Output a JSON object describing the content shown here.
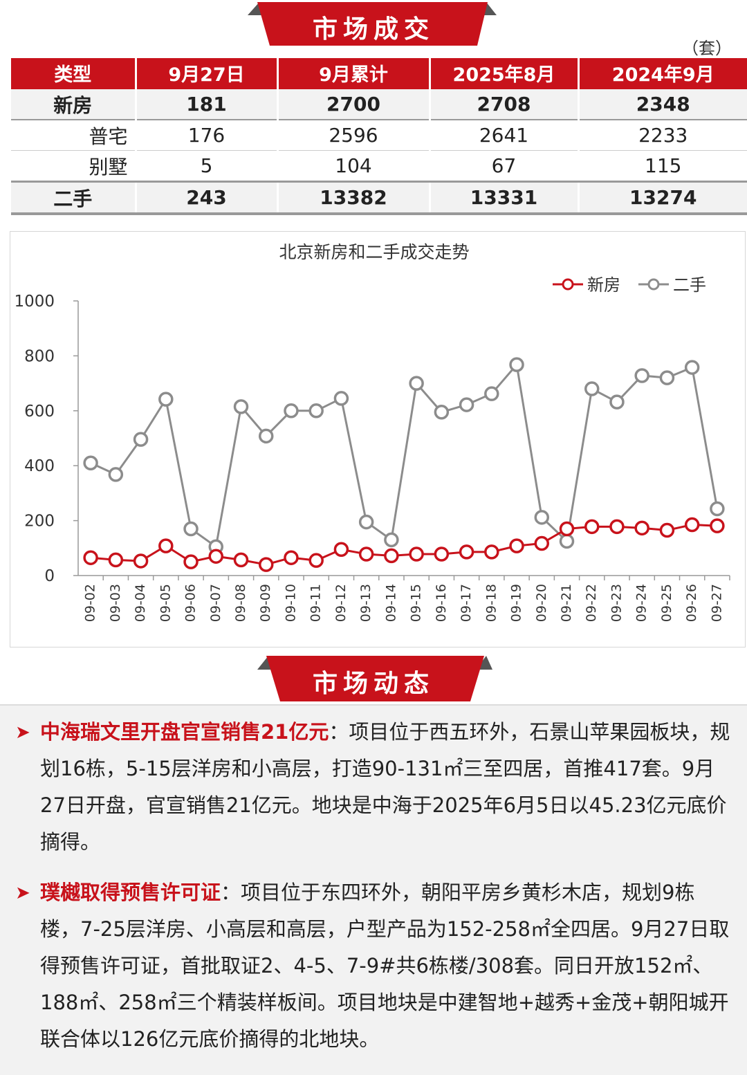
{
  "section1": {
    "title": "市场成交"
  },
  "unit": "（套）",
  "table": {
    "headers": [
      "类型",
      "9月27日",
      "9月累计",
      "2025年8月",
      "2024年9月"
    ],
    "rows": [
      {
        "label": "新房",
        "values": [
          "181",
          "2700",
          "2708",
          "2348"
        ]
      },
      {
        "label": "普宅",
        "values": [
          "176",
          "2596",
          "2641",
          "2233"
        ]
      },
      {
        "label": "别墅",
        "values": [
          "5",
          "104",
          "67",
          "115"
        ]
      },
      {
        "label": "二手",
        "values": [
          "243",
          "13382",
          "13331",
          "13274"
        ]
      }
    ]
  },
  "chart_data": {
    "type": "line",
    "title": "北京新房和二手成交走势",
    "ylim": [
      0,
      1000
    ],
    "yticks": [
      "0",
      "200",
      "400",
      "600",
      "800",
      "1000"
    ],
    "grid": false,
    "legend_position": "top-right",
    "x": [
      "09-02",
      "09-03",
      "09-04",
      "09-05",
      "09-06",
      "09-07",
      "09-08",
      "09-09",
      "09-10",
      "09-11",
      "09-12",
      "09-13",
      "09-14",
      "09-15",
      "09-16",
      "09-17",
      "09-18",
      "09-19",
      "09-20",
      "09-21",
      "09-22",
      "09-23",
      "09-24",
      "09-25",
      "09-26",
      "09-27"
    ],
    "series": [
      {
        "name": "新房",
        "color": "#c8121b",
        "values": [
          65,
          57,
          53,
          108,
          50,
          70,
          57,
          40,
          65,
          55,
          95,
          78,
          72,
          78,
          78,
          86,
          86,
          108,
          117,
          170,
          178,
          178,
          173,
          165,
          185,
          181
        ]
      },
      {
        "name": "二手",
        "color": "#8c8c8c",
        "values": [
          410,
          368,
          496,
          642,
          170,
          105,
          615,
          508,
          600,
          600,
          645,
          195,
          130,
          700,
          595,
          622,
          662,
          768,
          212,
          125,
          680,
          632,
          728,
          720,
          758,
          243
        ]
      }
    ]
  },
  "section2": {
    "title": "市场动态"
  },
  "news": [
    {
      "headline": "中海瑞文里开盘官宣销售21亿元",
      "body": "：项目位于西五环外，石景山苹果园板块，规划16栋，5-15层洋房和小高层，打造90-131㎡三至四居，首推417套。9月27日开盘，官宣销售21亿元。地块是中海于2025年6月5日以45.23亿元底价摘得。"
    },
    {
      "headline": "璞樾取得预售许可证",
      "body": "：项目位于东四环外，朝阳平房乡黄杉木店，规划9栋楼，7-25层洋房、小高层和高层，户型产品为152-258㎡全四居。9月27日取得预售许可证，首批取证2、4-5、7-9#共6栋楼/308套。同日开放152㎡、188㎡、258㎡三个精装样板间。项目地块是中建智地+越秀+金茂+朝阳城开联合体以126亿元底价摘得的北地块。"
    }
  ]
}
